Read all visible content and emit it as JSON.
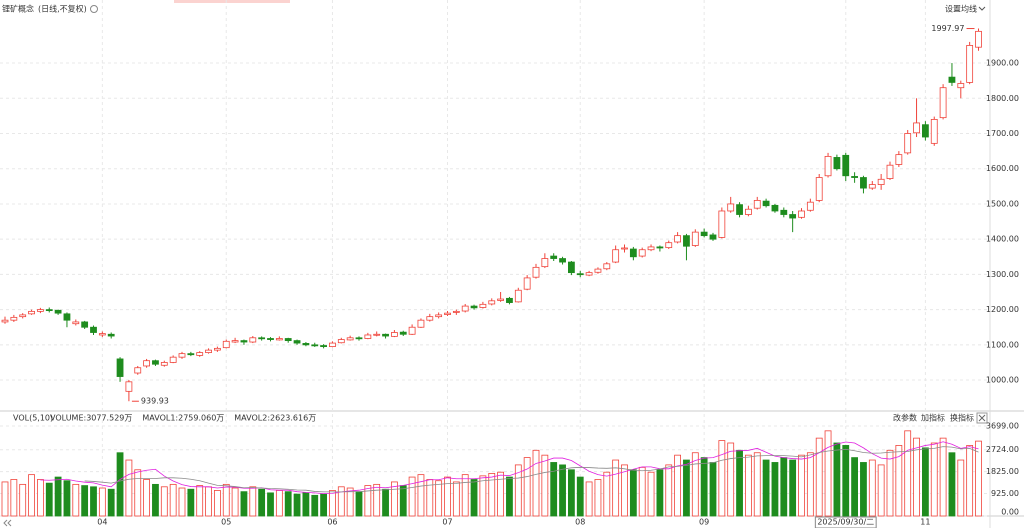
{
  "chart_data": [
    {
      "type": "candlestick",
      "title": "锂矿概念",
      "subtitle": "(日线,不复权)",
      "settings_button": "设置均线",
      "colors": {
        "up": "#f0433a",
        "down": "#1e8c1e"
      },
      "grid": true,
      "ylim": [
        915,
        2079
      ],
      "yticks": [
        {
          "value": 1000,
          "label": "1000.00"
        },
        {
          "value": 1100,
          "label": "1100.00"
        },
        {
          "value": 1200,
          "label": "1200.00"
        },
        {
          "value": 1300,
          "label": "1300.00"
        },
        {
          "value": 1400,
          "label": "1400.00"
        },
        {
          "value": 1500,
          "label": "1500.00"
        },
        {
          "value": 1600,
          "label": "1600.00"
        },
        {
          "value": 1700,
          "label": "1700.00"
        },
        {
          "value": 1800,
          "label": "1800.00"
        },
        {
          "value": 1900,
          "label": "1900.00"
        }
      ],
      "categories": [
        null,
        null,
        null,
        null,
        null,
        null,
        null,
        null,
        null,
        null,
        null,
        "04",
        null,
        null,
        null,
        null,
        null,
        null,
        null,
        null,
        null,
        null,
        null,
        null,
        null,
        "05",
        null,
        null,
        null,
        null,
        null,
        null,
        null,
        null,
        null,
        null,
        null,
        "06",
        null,
        null,
        null,
        null,
        null,
        null,
        null,
        null,
        null,
        null,
        null,
        null,
        "07",
        null,
        null,
        null,
        null,
        null,
        null,
        null,
        null,
        null,
        null,
        null,
        null,
        null,
        null,
        "08",
        null,
        null,
        null,
        null,
        null,
        null,
        null,
        null,
        null,
        null,
        null,
        null,
        null,
        "09",
        null,
        null,
        null,
        null,
        null,
        null,
        null,
        null,
        null,
        null,
        null,
        null,
        null,
        null,
        null,
        "2025/09/30/二",
        null,
        null,
        null,
        null,
        null,
        null,
        null,
        null,
        "11",
        null,
        null,
        null,
        null,
        null,
        null
      ],
      "ohlc": [
        [
          1165,
          1180,
          1160,
          1170
        ],
        [
          1170,
          1185,
          1165,
          1178
        ],
        [
          1180,
          1190,
          1175,
          1185
        ],
        [
          1188,
          1200,
          1185,
          1195
        ],
        [
          1195,
          1205,
          1190,
          1200
        ],
        [
          1200,
          1206,
          1192,
          1198
        ],
        [
          1198,
          1200,
          1185,
          1190
        ],
        [
          1188,
          1192,
          1150,
          1170
        ],
        [
          1160,
          1172,
          1155,
          1165
        ],
        [
          1165,
          1168,
          1145,
          1150
        ],
        [
          1150,
          1155,
          1128,
          1135
        ],
        [
          1128,
          1138,
          1122,
          1132
        ],
        [
          1130,
          1135,
          1118,
          1125
        ],
        [
          1060,
          1065,
          995,
          1010
        ],
        [
          968,
          1000,
          939.93,
          995
        ],
        [
          1020,
          1040,
          1015,
          1035
        ],
        [
          1040,
          1060,
          1035,
          1055
        ],
        [
          1055,
          1058,
          1040,
          1045
        ],
        [
          1042,
          1055,
          1038,
          1050
        ],
        [
          1050,
          1070,
          1048,
          1065
        ],
        [
          1065,
          1080,
          1060,
          1075
        ],
        [
          1075,
          1080,
          1068,
          1072
        ],
        [
          1070,
          1082,
          1066,
          1078
        ],
        [
          1078,
          1090,
          1075,
          1085
        ],
        [
          1085,
          1095,
          1080,
          1090
        ],
        [
          1092,
          1115,
          1090,
          1110
        ],
        [
          1108,
          1120,
          1105,
          1112
        ],
        [
          1112,
          1115,
          1100,
          1108
        ],
        [
          1108,
          1125,
          1105,
          1120
        ],
        [
          1120,
          1124,
          1112,
          1118
        ],
        [
          1118,
          1122,
          1110,
          1115
        ],
        [
          1114,
          1124,
          1112,
          1118
        ],
        [
          1118,
          1120,
          1106,
          1112
        ],
        [
          1112,
          1115,
          1100,
          1105
        ],
        [
          1104,
          1108,
          1096,
          1100
        ],
        [
          1100,
          1106,
          1094,
          1098
        ],
        [
          1098,
          1102,
          1090,
          1095
        ],
        [
          1095,
          1110,
          1093,
          1105
        ],
        [
          1106,
          1120,
          1104,
          1115
        ],
        [
          1114,
          1126,
          1112,
          1120
        ],
        [
          1120,
          1124,
          1112,
          1118
        ],
        [
          1118,
          1134,
          1116,
          1128
        ],
        [
          1128,
          1138,
          1124,
          1130
        ],
        [
          1130,
          1132,
          1118,
          1125
        ],
        [
          1124,
          1142,
          1122,
          1135
        ],
        [
          1136,
          1140,
          1125,
          1130
        ],
        [
          1130,
          1158,
          1128,
          1150
        ],
        [
          1150,
          1175,
          1148,
          1170
        ],
        [
          1170,
          1188,
          1166,
          1180
        ],
        [
          1180,
          1192,
          1175,
          1185
        ],
        [
          1186,
          1196,
          1182,
          1190
        ],
        [
          1192,
          1200,
          1185,
          1195
        ],
        [
          1196,
          1216,
          1192,
          1210
        ],
        [
          1210,
          1214,
          1200,
          1205
        ],
        [
          1206,
          1222,
          1203,
          1215
        ],
        [
          1216,
          1232,
          1212,
          1225
        ],
        [
          1226,
          1250,
          1222,
          1230
        ],
        [
          1232,
          1236,
          1215,
          1220
        ],
        [
          1222,
          1262,
          1220,
          1255
        ],
        [
          1258,
          1298,
          1255,
          1290
        ],
        [
          1292,
          1330,
          1288,
          1320
        ],
        [
          1322,
          1360,
          1318,
          1345
        ],
        [
          1352,
          1360,
          1338,
          1345
        ],
        [
          1345,
          1350,
          1328,
          1335
        ],
        [
          1335,
          1338,
          1298,
          1305
        ],
        [
          1302,
          1310,
          1292,
          1300
        ],
        [
          1298,
          1310,
          1295,
          1305
        ],
        [
          1306,
          1320,
          1302,
          1315
        ],
        [
          1316,
          1335,
          1312,
          1330
        ],
        [
          1335,
          1382,
          1332,
          1370
        ],
        [
          1372,
          1385,
          1362,
          1375
        ],
        [
          1372,
          1378,
          1340,
          1350
        ],
        [
          1352,
          1376,
          1348,
          1370
        ],
        [
          1370,
          1385,
          1366,
          1378
        ],
        [
          1378,
          1382,
          1365,
          1375
        ],
        [
          1376,
          1396,
          1372,
          1390
        ],
        [
          1392,
          1420,
          1388,
          1410
        ],
        [
          1410,
          1415,
          1340,
          1380
        ],
        [
          1382,
          1428,
          1378,
          1420
        ],
        [
          1420,
          1430,
          1405,
          1410
        ],
        [
          1412,
          1418,
          1395,
          1400
        ],
        [
          1405,
          1490,
          1402,
          1480
        ],
        [
          1480,
          1520,
          1475,
          1500
        ],
        [
          1498,
          1505,
          1462,
          1470
        ],
        [
          1470,
          1495,
          1465,
          1485
        ],
        [
          1488,
          1520,
          1484,
          1510
        ],
        [
          1508,
          1515,
          1490,
          1495
        ],
        [
          1496,
          1500,
          1475,
          1480
        ],
        [
          1482,
          1490,
          1462,
          1470
        ],
        [
          1470,
          1480,
          1420,
          1460
        ],
        [
          1462,
          1488,
          1458,
          1480
        ],
        [
          1482,
          1515,
          1478,
          1505
        ],
        [
          1510,
          1585,
          1505,
          1575
        ],
        [
          1580,
          1645,
          1575,
          1635
        ],
        [
          1632,
          1640,
          1595,
          1600
        ],
        [
          1638,
          1645,
          1565,
          1580
        ],
        [
          1578,
          1590,
          1560,
          1575
        ],
        [
          1575,
          1580,
          1530,
          1545
        ],
        [
          1545,
          1565,
          1540,
          1555
        ],
        [
          1555,
          1585,
          1540,
          1570
        ],
        [
          1572,
          1620,
          1568,
          1610
        ],
        [
          1612,
          1650,
          1605,
          1640
        ],
        [
          1645,
          1710,
          1640,
          1700
        ],
        [
          1702,
          1800,
          1690,
          1730
        ],
        [
          1725,
          1735,
          1680,
          1690
        ],
        [
          1672,
          1748,
          1665,
          1740
        ],
        [
          1745,
          1840,
          1740,
          1830
        ],
        [
          1860,
          1900,
          1835,
          1845
        ],
        [
          1830,
          1850,
          1800,
          1842
        ],
        [
          1845,
          1960,
          1840,
          1950
        ],
        [
          1945,
          1997.97,
          1935,
          1990
        ]
      ]
    },
    {
      "type": "bar",
      "title": "VOL(5,10)",
      "buttons": [
        "改参数",
        "加指标",
        "换指标"
      ],
      "ylim": [
        0,
        3863
      ],
      "yticks": [
        {
          "value": 0,
          "label": "0.00"
        },
        {
          "value": 925,
          "label": "925.00"
        },
        {
          "value": 1825,
          "label": "1825.00"
        },
        {
          "value": 2724,
          "label": "2724.00"
        },
        {
          "value": 3699,
          "label": "3699.00"
        }
      ],
      "series": [
        {
          "name": "VOLUME:3077.529万",
          "color": "#1a1a8c",
          "values": [
            1400,
            1500,
            1300,
            1700,
            1500,
            1350,
            1600,
            1450,
            1300,
            1250,
            1200,
            1150,
            1100,
            2600,
            2300,
            1900,
            1500,
            1300,
            1200,
            1300,
            1150,
            1100,
            1250,
            1200,
            1050,
            1300,
            1150,
            1000,
            1200,
            1100,
            950,
            1050,
            1000,
            900,
            950,
            850,
            900,
            1050,
            1200,
            1150,
            1000,
            1250,
            1300,
            1100,
            1400,
            1250,
            1600,
            1700,
            1500,
            1450,
            1600,
            1400,
            1700,
            1500,
            1650,
            1750,
            1800,
            1600,
            2100,
            2400,
            2700,
            2500,
            2200,
            2100,
            1900,
            1600,
            1400,
            1500,
            1800,
            2300,
            2100,
            1900,
            2000,
            1800,
            1900,
            2100,
            2500,
            2300,
            2600,
            2400,
            2200,
            3100,
            3000,
            2700,
            2500,
            2600,
            2300,
            2200,
            2400,
            2300,
            2500,
            2600,
            3200,
            3500,
            3000,
            2900,
            2400,
            2200,
            2300,
            2100,
            2700,
            2900,
            3500,
            3200,
            2800,
            3000,
            3200,
            2600,
            2300,
            2900,
            3077.529
          ]
        },
        {
          "name": "MAVOL1:2759.060万",
          "color": "#e020e0",
          "values": [
            null,
            null,
            null,
            null,
            1480,
            1470,
            1490,
            1510,
            1440,
            1390,
            1360,
            1270,
            1200,
            1500,
            1710,
            1810,
            1880,
            1920,
            1640,
            1440,
            1290,
            1210,
            1200,
            1200,
            1150,
            1190,
            1190,
            1140,
            1140,
            1160,
            1080,
            1060,
            1060,
            1000,
            970,
            950,
            920,
            930,
            990,
            1030,
            1060,
            1130,
            1180,
            1160,
            1210,
            1260,
            1330,
            1410,
            1490,
            1490,
            1570,
            1530,
            1530,
            1530,
            1570,
            1600,
            1680,
            1660,
            1780,
            1930,
            2160,
            2260,
            2380,
            2380,
            2280,
            2060,
            1840,
            1700,
            1640,
            1720,
            1820,
            1920,
            2020,
            2020,
            1940,
            1940,
            2060,
            2120,
            2280,
            2380,
            2400,
            2520,
            2660,
            2680,
            2700,
            2780,
            2620,
            2460,
            2400,
            2360,
            2340,
            2400,
            2600,
            2820,
            2960,
            3040,
            3000,
            2800,
            2560,
            2380,
            2340,
            2440,
            2700,
            2800,
            2900,
            2950,
            3050,
            2950,
            2780,
            2850,
            2759.06
          ]
        },
        {
          "name": "MAVOL2:2623.616万",
          "color": "#8a8a8a",
          "values": [
            null,
            null,
            null,
            null,
            null,
            null,
            null,
            null,
            null,
            1440,
            1420,
            1390,
            1350,
            1440,
            1510,
            1540,
            1540,
            1540,
            1570,
            1570,
            1550,
            1510,
            1450,
            1350,
            1260,
            1240,
            1210,
            1160,
            1170,
            1150,
            1130,
            1120,
            1100,
            1070,
            1060,
            1010,
            990,
            990,
            990,
            1000,
            1000,
            1030,
            1060,
            1080,
            1100,
            1120,
            1170,
            1230,
            1270,
            1300,
            1330,
            1340,
            1380,
            1400,
            1450,
            1480,
            1510,
            1540,
            1560,
            1620,
            1710,
            1790,
            1840,
            1920,
            1980,
            2000,
            1990,
            1970,
            1960,
            1980,
            1940,
            1880,
            1860,
            1880,
            1930,
            2020,
            2040,
            2080,
            2140,
            2160,
            2190,
            2290,
            2360,
            2400,
            2420,
            2470,
            2480,
            2480,
            2480,
            2460,
            2430,
            2510,
            2610,
            2670,
            2710,
            2740,
            2680,
            2610,
            2580,
            2590,
            2620,
            2640,
            2650,
            2720,
            2760,
            2780,
            2850,
            2830,
            2760,
            2780,
            2623.616
          ]
        }
      ]
    }
  ]
}
